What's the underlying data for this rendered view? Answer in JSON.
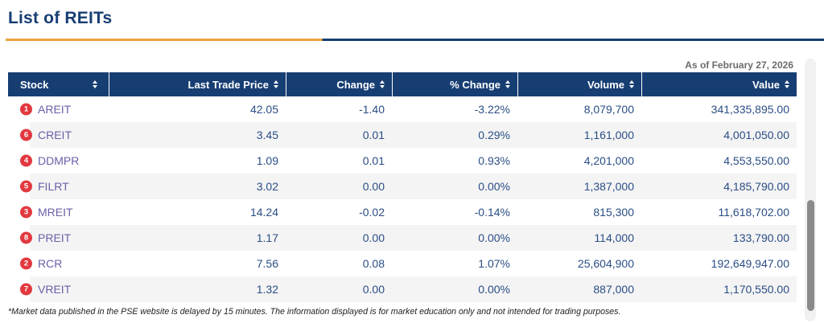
{
  "page": {
    "title": "List of REITs",
    "as_of": "As of February 27, 2026",
    "footnote": "*Market data published in the PSE website is delayed by 15 minutes. The information displayed is for market education only and not intended for trading purposes."
  },
  "table": {
    "columns": [
      {
        "label": "Stock",
        "align": "left",
        "sortable": true
      },
      {
        "label": "Last Trade Price",
        "align": "right",
        "sortable": true
      },
      {
        "label": "Change",
        "align": "right",
        "sortable": true
      },
      {
        "label": "% Change",
        "align": "right",
        "sortable": true
      },
      {
        "label": "Volume",
        "align": "right",
        "sortable": true
      },
      {
        "label": "Value",
        "align": "right",
        "sortable": true
      }
    ],
    "rows": [
      {
        "rank": "1",
        "stock": "AREIT",
        "last_trade_price": "42.05",
        "change": "-1.40",
        "pct_change": "-3.22%",
        "volume": "8,079,700",
        "value": "341,335,895.00"
      },
      {
        "rank": "6",
        "stock": "CREIT",
        "last_trade_price": "3.45",
        "change": "0.01",
        "pct_change": "0.29%",
        "volume": "1,161,000",
        "value": "4,001,050.00"
      },
      {
        "rank": "4",
        "stock": "DDMPR",
        "last_trade_price": "1.09",
        "change": "0.01",
        "pct_change": "0.93%",
        "volume": "4,201,000",
        "value": "4,553,550.00"
      },
      {
        "rank": "5",
        "stock": "FILRT",
        "last_trade_price": "3.02",
        "change": "0.00",
        "pct_change": "0.00%",
        "volume": "1,387,000",
        "value": "4,185,790.00"
      },
      {
        "rank": "3",
        "stock": "MREIT",
        "last_trade_price": "14.24",
        "change": "-0.02",
        "pct_change": "-0.14%",
        "volume": "815,300",
        "value": "11,618,702.00"
      },
      {
        "rank": "8",
        "stock": "PREIT",
        "last_trade_price": "1.17",
        "change": "0.00",
        "pct_change": "0.00%",
        "volume": "114,000",
        "value": "133,790.00"
      },
      {
        "rank": "2",
        "stock": "RCR",
        "last_trade_price": "7.56",
        "change": "0.08",
        "pct_change": "1.07%",
        "volume": "25,604,900",
        "value": "192,649,947.00"
      },
      {
        "rank": "7",
        "stock": "VREIT",
        "last_trade_price": "1.32",
        "change": "0.00",
        "pct_change": "0.00%",
        "volume": "887,000",
        "value": "1,170,550.00"
      }
    ]
  },
  "colors": {
    "navy": "#173e73",
    "gold": "#e8a33c",
    "ticker": "#6a61a8",
    "badge": "#e2383f",
    "num": "#2a4d85",
    "stripe": "#f4f4f4"
  }
}
